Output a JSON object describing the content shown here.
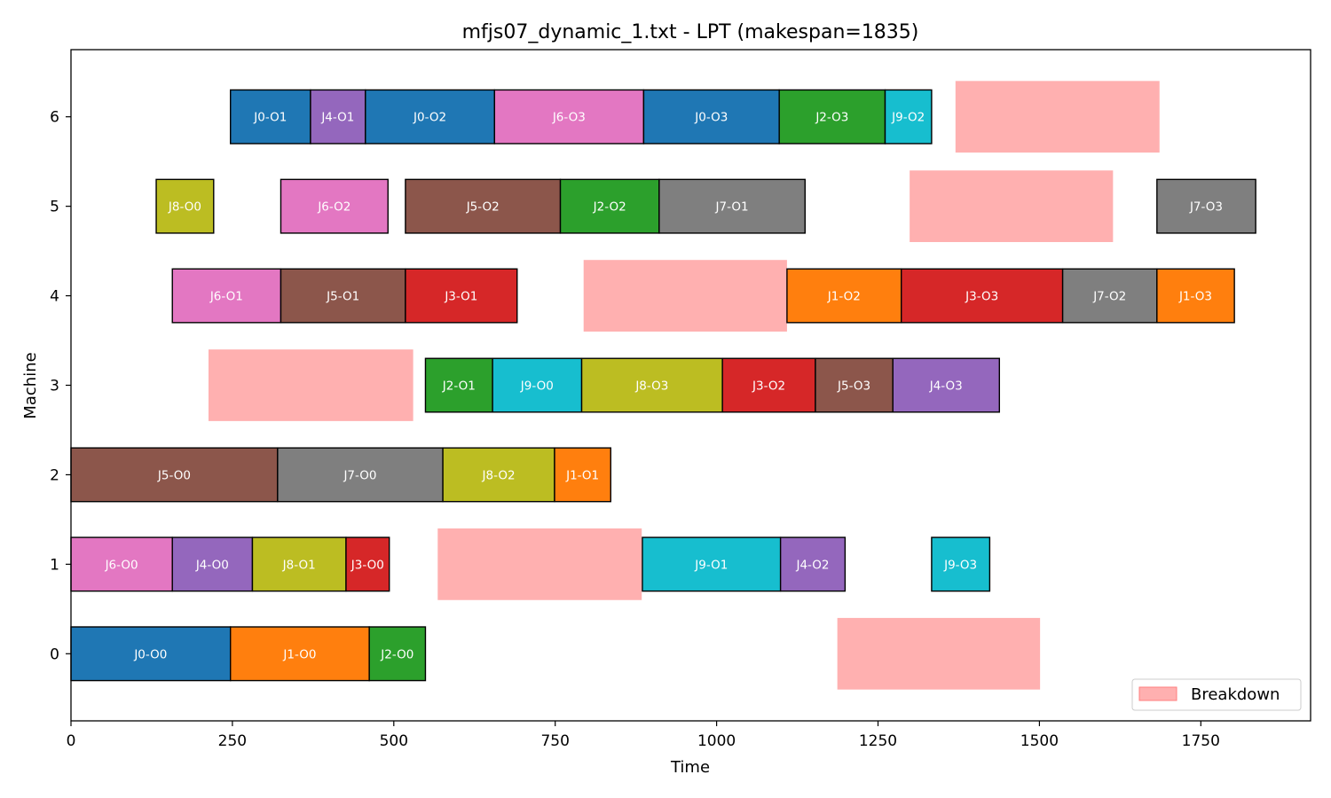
{
  "chart_data": {
    "type": "gantt",
    "title": "mfjs07_dynamic_1.txt - LPT (makespan=1835)",
    "xlabel": "Time",
    "ylabel": "Machine",
    "xlim": [
      0,
      1920
    ],
    "ylim": [
      -0.75,
      6.75
    ],
    "x_ticks": [
      0,
      250,
      500,
      750,
      1000,
      1250,
      1500,
      1750
    ],
    "y_ticks": [
      0,
      1,
      2,
      3,
      4,
      5,
      6
    ],
    "grid": false,
    "legend": {
      "position": "bottom-right",
      "entries": [
        {
          "label": "Breakdown",
          "color": "#ffb0b0"
        }
      ]
    },
    "job_colors": {
      "J0": "#1f77b4",
      "J1": "#ff7f0e",
      "J2": "#2ca02c",
      "J3": "#d62728",
      "J4": "#9467bd",
      "J5": "#8c564b",
      "J6": "#e377c2",
      "J7": "#7f7f7f",
      "J8": "#bcbd22",
      "J9": "#17becf"
    },
    "tasks": [
      {
        "machine": 0,
        "label": "J0-O0",
        "job": "J0",
        "start": 0,
        "end": 247
      },
      {
        "machine": 0,
        "label": "J1-O0",
        "job": "J1",
        "start": 247,
        "end": 462
      },
      {
        "machine": 0,
        "label": "J2-O0",
        "job": "J2",
        "start": 462,
        "end": 549
      },
      {
        "machine": 1,
        "label": "J6-O0",
        "job": "J6",
        "start": 0,
        "end": 157
      },
      {
        "machine": 1,
        "label": "J4-O0",
        "job": "J4",
        "start": 157,
        "end": 281
      },
      {
        "machine": 1,
        "label": "J8-O1",
        "job": "J8",
        "start": 281,
        "end": 426
      },
      {
        "machine": 1,
        "label": "J3-O0",
        "job": "J3",
        "start": 426,
        "end": 493
      },
      {
        "machine": 1,
        "label": "J9-O1",
        "job": "J9",
        "start": 885,
        "end": 1099
      },
      {
        "machine": 1,
        "label": "J4-O2",
        "job": "J4",
        "start": 1099,
        "end": 1199
      },
      {
        "machine": 1,
        "label": "J9-O3",
        "job": "J9",
        "start": 1333,
        "end": 1423
      },
      {
        "machine": 2,
        "label": "J5-O0",
        "job": "J5",
        "start": 0,
        "end": 320
      },
      {
        "machine": 2,
        "label": "J7-O0",
        "job": "J7",
        "start": 320,
        "end": 576
      },
      {
        "machine": 2,
        "label": "J8-O2",
        "job": "J8",
        "start": 576,
        "end": 749
      },
      {
        "machine": 2,
        "label": "J1-O1",
        "job": "J1",
        "start": 749,
        "end": 836
      },
      {
        "machine": 3,
        "label": "J2-O1",
        "job": "J2",
        "start": 549,
        "end": 653
      },
      {
        "machine": 3,
        "label": "J9-O0",
        "job": "J9",
        "start": 653,
        "end": 791
      },
      {
        "machine": 3,
        "label": "J8-O3",
        "job": "J8",
        "start": 791,
        "end": 1009
      },
      {
        "machine": 3,
        "label": "J3-O2",
        "job": "J3",
        "start": 1009,
        "end": 1153
      },
      {
        "machine": 3,
        "label": "J5-O3",
        "job": "J5",
        "start": 1153,
        "end": 1273
      },
      {
        "machine": 3,
        "label": "J4-O3",
        "job": "J4",
        "start": 1273,
        "end": 1438
      },
      {
        "machine": 4,
        "label": "J6-O1",
        "job": "J6",
        "start": 157,
        "end": 325
      },
      {
        "machine": 4,
        "label": "J5-O1",
        "job": "J5",
        "start": 325,
        "end": 518
      },
      {
        "machine": 4,
        "label": "J3-O1",
        "job": "J3",
        "start": 518,
        "end": 691
      },
      {
        "machine": 4,
        "label": "J1-O2",
        "job": "J1",
        "start": 1109,
        "end": 1286
      },
      {
        "machine": 4,
        "label": "J3-O3",
        "job": "J3",
        "start": 1286,
        "end": 1536
      },
      {
        "machine": 4,
        "label": "J7-O2",
        "job": "J7",
        "start": 1536,
        "end": 1682
      },
      {
        "machine": 4,
        "label": "J1-O3",
        "job": "J1",
        "start": 1682,
        "end": 1802
      },
      {
        "machine": 5,
        "label": "J8-O0",
        "job": "J8",
        "start": 132,
        "end": 221
      },
      {
        "machine": 5,
        "label": "J6-O2",
        "job": "J6",
        "start": 325,
        "end": 491
      },
      {
        "machine": 5,
        "label": "J5-O2",
        "job": "J5",
        "start": 518,
        "end": 758
      },
      {
        "machine": 5,
        "label": "J2-O2",
        "job": "J2",
        "start": 758,
        "end": 911
      },
      {
        "machine": 5,
        "label": "J7-O1",
        "job": "J7",
        "start": 911,
        "end": 1137
      },
      {
        "machine": 5,
        "label": "J7-O3",
        "job": "J7",
        "start": 1682,
        "end": 1835
      },
      {
        "machine": 6,
        "label": "J0-O1",
        "job": "J0",
        "start": 247,
        "end": 371
      },
      {
        "machine": 6,
        "label": "J4-O1",
        "job": "J4",
        "start": 371,
        "end": 456
      },
      {
        "machine": 6,
        "label": "J0-O2",
        "job": "J0",
        "start": 456,
        "end": 656
      },
      {
        "machine": 6,
        "label": "J6-O3",
        "job": "J6",
        "start": 656,
        "end": 887
      },
      {
        "machine": 6,
        "label": "J0-O3",
        "job": "J0",
        "start": 887,
        "end": 1097
      },
      {
        "machine": 6,
        "label": "J2-O3",
        "job": "J2",
        "start": 1097,
        "end": 1261
      },
      {
        "machine": 6,
        "label": "J9-O2",
        "job": "J9",
        "start": 1261,
        "end": 1333
      }
    ],
    "breakdowns": [
      {
        "machine": 0,
        "start": 1187,
        "end": 1501
      },
      {
        "machine": 1,
        "start": 568,
        "end": 884
      },
      {
        "machine": 3,
        "start": 213,
        "end": 530
      },
      {
        "machine": 4,
        "start": 794,
        "end": 1109
      },
      {
        "machine": 5,
        "start": 1299,
        "end": 1614
      },
      {
        "machine": 6,
        "start": 1370,
        "end": 1686
      }
    ]
  }
}
